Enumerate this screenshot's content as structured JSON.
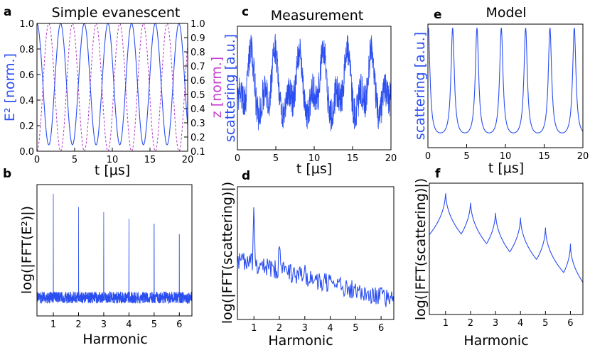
{
  "colors": {
    "signal": "#2b4ef0",
    "height": "#c53fd1"
  },
  "chart_data": [
    {
      "panel": "a",
      "type": "line",
      "title": "Simple evanescent",
      "xlabel": "t [μs]",
      "ylabel": "E² [norm.]",
      "ylabel_right": "z [norm.]",
      "xlim": [
        0,
        20
      ],
      "ylim": [
        0,
        1
      ],
      "ylim_right": [
        0.1,
        1.0
      ],
      "xticks": [
        "0",
        "5",
        "10",
        "15",
        "20"
      ],
      "yticks": [
        "0.0",
        "0.2",
        "0.4",
        "0.6",
        "0.8",
        "1.0"
      ],
      "yticks_right": [
        "0.1",
        "0.2",
        "0.3",
        "0.4",
        "0.5",
        "0.6",
        "0.7",
        "0.8",
        "0.9",
        "1.0"
      ],
      "series": [
        {
          "name": "E²",
          "style": "solid",
          "period": 3.14,
          "min": 0.05,
          "max": 1.0
        },
        {
          "name": "z",
          "style": "dashed",
          "period": 3.14,
          "min": 0.1,
          "max": 1.0
        }
      ]
    },
    {
      "panel": "b",
      "type": "line",
      "xlabel": "Harmonic",
      "ylabel": "log(|FFT(E²)|)",
      "xlim": [
        0.35,
        6.5
      ],
      "xticks": [
        "1",
        "2",
        "3",
        "4",
        "5",
        "6"
      ],
      "peaks": [
        {
          "x": 1,
          "y": 0.93
        },
        {
          "x": 2,
          "y": 0.83
        },
        {
          "x": 3,
          "y": 0.79
        },
        {
          "x": 4,
          "y": 0.74
        },
        {
          "x": 5,
          "y": 0.7
        },
        {
          "x": 6,
          "y": 0.62
        }
      ],
      "noise_floor": 0.14
    },
    {
      "panel": "c",
      "type": "line",
      "title": "Measurement",
      "xlabel": "t [μs]",
      "ylabel": "scattering [a.u.]",
      "xlim": [
        0,
        20
      ],
      "xticks": [
        "0",
        "5",
        "10",
        "15",
        "20"
      ],
      "period": 3.14
    },
    {
      "panel": "d",
      "type": "line",
      "xlabel": "Harmonic",
      "ylabel": "log(|FFT(scattering)|)",
      "xlim": [
        0.35,
        6.5
      ],
      "xticks": [
        "1",
        "2",
        "3",
        "4",
        "5",
        "6"
      ],
      "peaks": [
        {
          "x": 1,
          "y": 0.8
        },
        {
          "x": 2,
          "y": 0.63
        },
        {
          "x": 3,
          "y": 0.52
        }
      ]
    },
    {
      "panel": "e",
      "type": "line",
      "title": "Model",
      "xlabel": "t [μs]",
      "ylabel": "scattering [a.u.]",
      "xlim": [
        0,
        20
      ],
      "xticks": [
        "0",
        "5",
        "10",
        "15",
        "20"
      ],
      "period": 3.14
    },
    {
      "panel": "f",
      "type": "line",
      "xlabel": "Harmonic",
      "ylabel": "log(|FFT(scattering)|)",
      "xlim": [
        0.35,
        6.5
      ],
      "xticks": [
        "1",
        "2",
        "3",
        "4",
        "5",
        "6"
      ],
      "peaks": [
        {
          "x": 1,
          "y": 0.95
        },
        {
          "x": 2,
          "y": 0.88
        },
        {
          "x": 3,
          "y": 0.8
        },
        {
          "x": 4,
          "y": 0.76
        },
        {
          "x": 5,
          "y": 0.68
        },
        {
          "x": 6,
          "y": 0.55
        }
      ],
      "base_level": 0.16
    }
  ]
}
